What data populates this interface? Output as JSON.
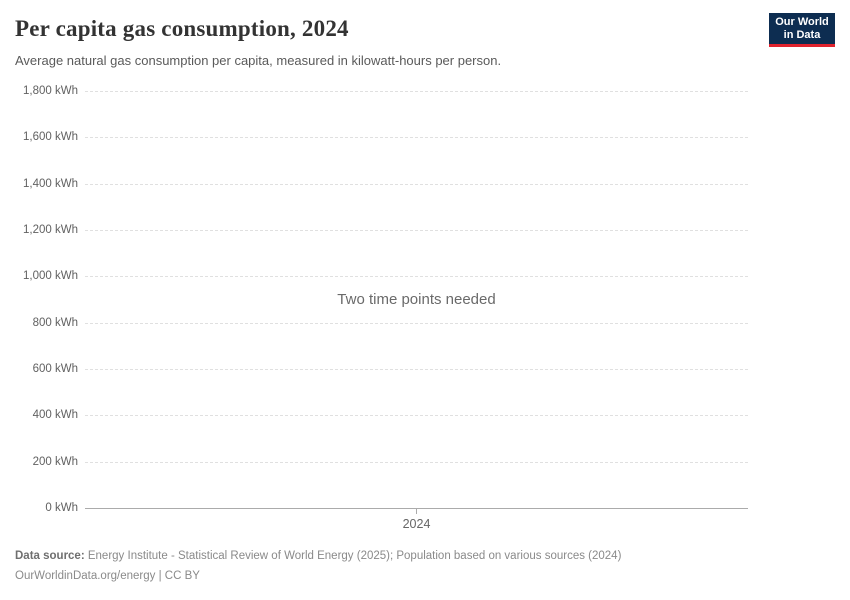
{
  "header": {
    "title": "Per capita gas consumption, 2024",
    "subtitle": "Average natural gas consumption per capita, measured in kilowatt-hours per person.",
    "logo": {
      "line1": "Our World",
      "line2": "in Data"
    }
  },
  "chart_data": {
    "type": "line",
    "title": "Per capita gas consumption, 2024",
    "series": [],
    "empty_message": "Two time points needed",
    "xlabel": "",
    "ylabel": "kWh",
    "ylim": [
      0,
      1800
    ],
    "ytick_interval": 200,
    "yticks": [
      {
        "value": 0,
        "label": "0 kWh"
      },
      {
        "value": 200,
        "label": "200 kWh"
      },
      {
        "value": 400,
        "label": "400 kWh"
      },
      {
        "value": 600,
        "label": "600 kWh"
      },
      {
        "value": 800,
        "label": "800 kWh"
      },
      {
        "value": 1000,
        "label": "1,000 kWh"
      },
      {
        "value": 1200,
        "label": "1,200 kWh"
      },
      {
        "value": 1400,
        "label": "1,400 kWh"
      },
      {
        "value": 1600,
        "label": "1,600 kWh"
      },
      {
        "value": 1800,
        "label": "1,800 kWh"
      }
    ],
    "xticks": [
      {
        "label": "2024"
      }
    ],
    "grid": "horizontal-dashed",
    "legend": "none"
  },
  "footer": {
    "source_label": "Data source:",
    "source_text": " Energy Institute - Statistical Review of World Energy (2025); Population based on various sources (2024)",
    "link_line": "OurWorldinData.org/energy | CC BY"
  },
  "colors": {
    "background": "#ffffff",
    "title": "#333333",
    "subtitle": "#5a5a5a",
    "tick_label": "#616161",
    "gridline": "#e0e0e0",
    "axis_line": "#ababab",
    "empty_message": "#6a6a6a",
    "footer_text": "#8a8a8a",
    "logo_navy": "#0d2d51",
    "logo_red": "#e0232e"
  }
}
